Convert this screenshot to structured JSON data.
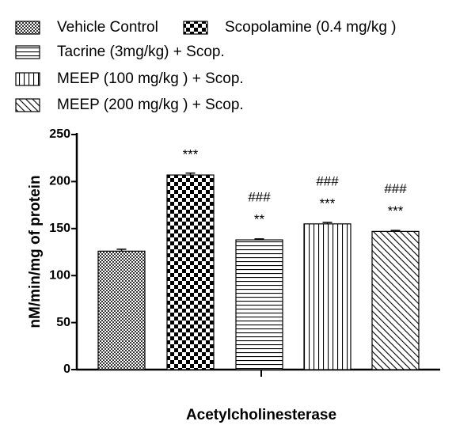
{
  "chart_data": {
    "type": "bar",
    "y_label": "nM/min/mg of protein",
    "x_label": "Acetylcholinesterase",
    "ylim": [
      0,
      250
    ],
    "yticks": [
      0,
      50,
      100,
      150,
      200,
      250
    ],
    "series": [
      {
        "name": "Vehicle Control",
        "color": "#000000",
        "pattern": "fine-checker",
        "values": [
          126
        ],
        "errors": [
          2
        ]
      },
      {
        "name": "Scopolamine (0.4 mg/kg )",
        "color": "#000000",
        "pattern": "checker",
        "values": [
          207
        ],
        "errors": [
          2
        ],
        "annotations": [
          "***"
        ]
      },
      {
        "name": "Tacrine (3mg/kg) + Scop.",
        "color": "#000000",
        "pattern": "horizontal",
        "values": [
          138
        ],
        "errors": [
          1
        ],
        "annotations": [
          "**",
          "###"
        ]
      },
      {
        "name": "MEEP (100 mg/kg ) + Scop.",
        "color": "#000000",
        "pattern": "vertical",
        "values": [
          155
        ],
        "errors": [
          1.5
        ],
        "annotations": [
          "***",
          "###"
        ]
      },
      {
        "name": "MEEP (200 mg/kg ) + Scop.",
        "color": "#000000",
        "pattern": "diagonal",
        "values": [
          147
        ],
        "errors": [
          1
        ],
        "annotations": [
          "***",
          "###"
        ]
      }
    ]
  }
}
